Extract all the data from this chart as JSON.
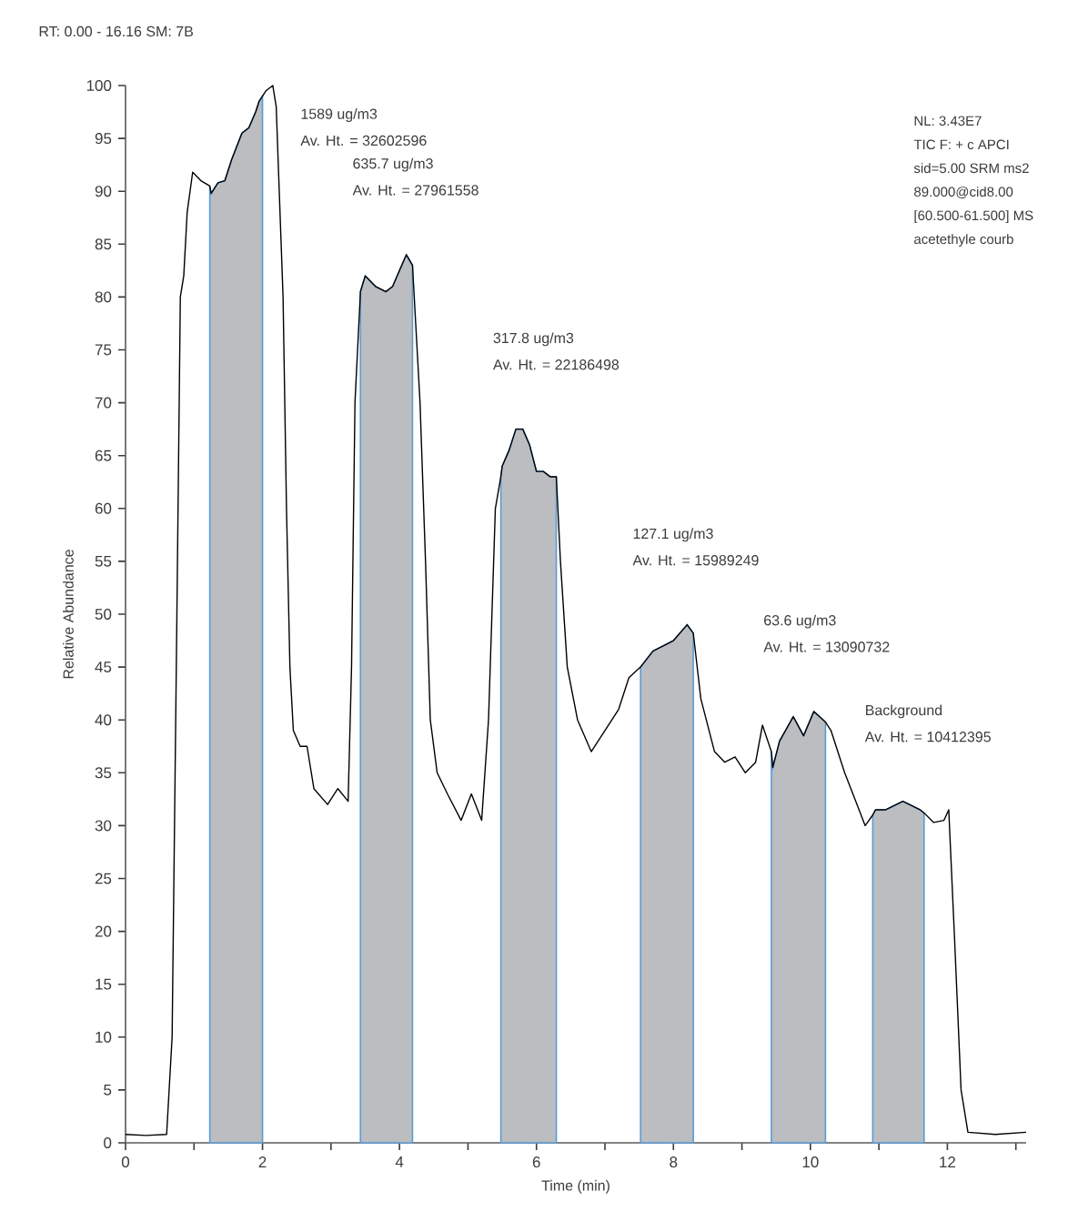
{
  "chart_data": {
    "type": "line",
    "xlabel": "Time (min)",
    "ylabel": "Relative Abundance",
    "xlim": [
      0,
      13.15
    ],
    "ylim": [
      0,
      100
    ],
    "xticks": [
      0,
      {
        "value": 1,
        "label": null
      },
      2,
      {
        "value": 3,
        "label": null
      },
      4,
      {
        "value": 5,
        "label": null
      },
      6,
      {
        "value": 7,
        "label": null
      },
      8,
      {
        "value": 9,
        "label": null
      },
      10,
      {
        "value": 11,
        "label": null
      },
      12,
      {
        "value": 13,
        "label": null
      }
    ],
    "yticks": [
      0,
      5,
      10,
      15,
      20,
      25,
      30,
      35,
      40,
      45,
      50,
      55,
      60,
      65,
      70,
      75,
      80,
      85,
      90,
      95,
      100
    ],
    "series": [
      {
        "type": "area",
        "color": "#bcbdc0",
        "x": [
          1.23,
          1.25,
          1.35,
          1.45,
          1.55,
          1.7,
          1.8,
          1.9,
          1.95,
          2.0
        ],
        "values": [
          90.5,
          89.8,
          90.8,
          91,
          93,
          95.5,
          96,
          97.5,
          98.5,
          99
        ]
      },
      {
        "type": "area",
        "color": "#bcbdc0",
        "x": [
          3.43,
          3.5,
          3.65,
          3.8,
          3.9,
          4.0,
          4.1,
          4.19
        ],
        "values": [
          80.5,
          82,
          81,
          80.5,
          81,
          82.5,
          84,
          83
        ]
      },
      {
        "type": "area",
        "color": "#bcbdc0",
        "x": [
          5.48,
          5.5,
          5.6,
          5.7,
          5.8,
          5.9,
          6.0,
          6.1,
          6.2,
          6.29
        ],
        "values": [
          63,
          64,
          65.5,
          67.5,
          67.5,
          66,
          63.5,
          63.5,
          63,
          63
        ]
      },
      {
        "type": "area",
        "color": "#bcbdc0",
        "x": [
          7.52,
          7.7,
          8.0,
          8.2,
          8.29
        ],
        "values": [
          45,
          46.5,
          47.5,
          49,
          48.2
        ]
      },
      {
        "type": "area",
        "color": "#bcbdc0",
        "x": [
          9.43,
          9.45,
          9.55,
          9.75,
          9.9,
          10.05,
          10.22
        ],
        "values": [
          37,
          35.5,
          38,
          40.3,
          38.5,
          40.8,
          39.8
        ]
      },
      {
        "type": "area",
        "color": "#bcbdc0",
        "x": [
          10.91,
          10.95,
          11.1,
          11.35,
          11.6,
          11.66
        ],
        "values": [
          31,
          31.5,
          31.5,
          32.3,
          31.5,
          31.2
        ]
      },
      {
        "color": "#000000",
        "x": [
          0,
          0.3,
          0.6,
          0.68,
          0.75,
          0.8,
          0.85,
          0.9,
          0.98,
          1.1,
          1.23,
          1.25,
          1.35,
          1.45,
          1.55,
          1.7,
          1.8,
          1.9,
          1.95,
          2.0,
          2.05,
          2.15,
          2.2,
          2.3,
          2.35,
          2.4,
          2.45,
          2.55,
          2.65,
          2.75,
          2.95,
          3.1,
          3.25,
          3.3,
          3.35,
          3.43,
          3.5,
          3.65,
          3.8,
          3.9,
          4.0,
          4.1,
          4.19,
          4.3,
          4.38,
          4.45,
          4.55,
          4.7,
          4.9,
          5.05,
          5.2,
          5.3,
          5.4,
          5.48,
          5.5,
          5.6,
          5.7,
          5.8,
          5.9,
          6.0,
          6.1,
          6.2,
          6.29,
          6.35,
          6.45,
          6.6,
          6.8,
          7.0,
          7.2,
          7.35,
          7.52,
          7.7,
          8.0,
          8.2,
          8.29,
          8.4,
          8.6,
          8.75,
          8.9,
          9.05,
          9.2,
          9.3,
          9.43,
          9.45,
          9.55,
          9.75,
          9.9,
          10.05,
          10.22,
          10.3,
          10.5,
          10.65,
          10.8,
          10.91,
          10.95,
          11.1,
          11.35,
          11.6,
          11.66,
          11.8,
          11.95,
          12.02,
          12.1,
          12.2,
          12.3,
          12.7,
          13.15
        ],
        "values": [
          0.8,
          0.7,
          0.8,
          10,
          50,
          80,
          82,
          88,
          91.8,
          91,
          90.5,
          89.8,
          90.8,
          91,
          93,
          95.5,
          96,
          97.5,
          98.5,
          99,
          99.5,
          100,
          98,
          80,
          60,
          45,
          39,
          37.5,
          37.5,
          33.5,
          32,
          33.5,
          32.3,
          45,
          70,
          80.5,
          82,
          81,
          80.5,
          81,
          82.5,
          84,
          83,
          70,
          55,
          40,
          35,
          33,
          30.5,
          33,
          30.5,
          40,
          60,
          63,
          64,
          65.5,
          67.5,
          67.5,
          66,
          63.5,
          63.5,
          63,
          63,
          55,
          45,
          40,
          37,
          39,
          41,
          44,
          45,
          46.5,
          47.5,
          49,
          48.2,
          42,
          37,
          36,
          36.5,
          35,
          36,
          39.5,
          37,
          35.5,
          38,
          40.3,
          38.5,
          40.8,
          39.8,
          39,
          35,
          32.5,
          30,
          31,
          31.5,
          31.5,
          32.3,
          31.5,
          31.2,
          30.3,
          30.5,
          31.5,
          20,
          5,
          1,
          0.8,
          1
        ]
      }
    ],
    "annotations": [
      "RT: 0.00 - 16.16  SM: 7B",
      "NL: 3.43E7",
      "TIC F: + c APCI",
      "sid=5.00  SRM ms2",
      "89.000@cid8.00",
      "[60.500-61.500]  MS",
      "acetethyle courb",
      "1589 ug/m3",
      "Av. Ht. = 32602596",
      "635.7 ug/m3",
      "Av. Ht. = 27961558",
      "317.8 ug/m3",
      "Av. Ht. = 22186498",
      "127.1 ug/m3",
      "Av. Ht. = 15989249",
      "63.6 ug/m3",
      "Av. Ht. = 13090732",
      "Background",
      "Av. Ht. = 10412395"
    ]
  }
}
